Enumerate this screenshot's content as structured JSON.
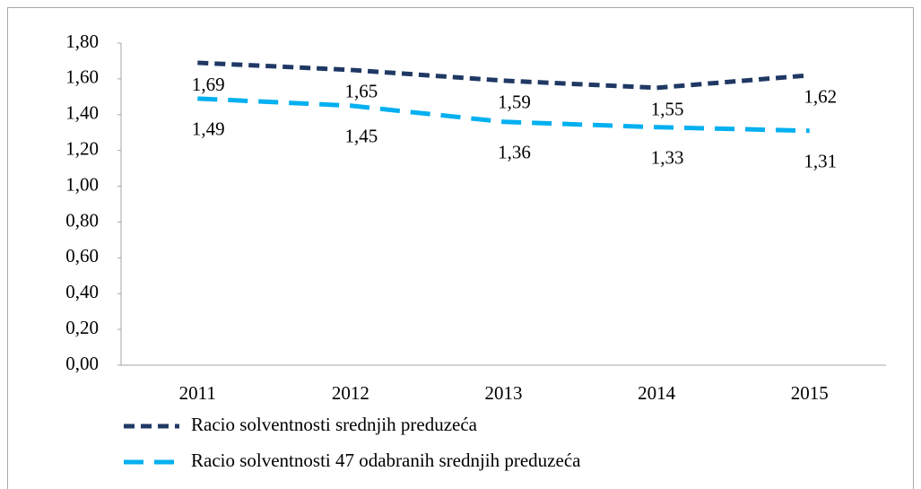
{
  "chart_data": {
    "type": "line",
    "categories": [
      "2011",
      "2012",
      "2013",
      "2014",
      "2015"
    ],
    "series": [
      {
        "name": "Racio solventnosti srednjih preduzeća",
        "color": "#203864",
        "values": [
          1.69,
          1.65,
          1.59,
          1.55,
          1.62
        ],
        "value_labels": [
          "1,69",
          "1,65",
          "1,59",
          "1,55",
          "1,62"
        ]
      },
      {
        "name": "Racio solventnosti 47 odabranih srednjih preduzeća",
        "color": "#00b0f0",
        "values": [
          1.49,
          1.45,
          1.36,
          1.33,
          1.31
        ],
        "value_labels": [
          "1,49",
          "1,45",
          "1,36",
          "1,33",
          "1,31"
        ]
      }
    ],
    "ylim": [
      0,
      1.8
    ],
    "yticks": [
      {
        "value": 0,
        "label": "0,00"
      },
      {
        "value": 0.2,
        "label": "0,20"
      },
      {
        "value": 0.4,
        "label": "0,40"
      },
      {
        "value": 0.6,
        "label": "0,60"
      },
      {
        "value": 0.8,
        "label": "0,80"
      },
      {
        "value": 1.0,
        "label": "1,00"
      },
      {
        "value": 1.2,
        "label": "1,20"
      },
      {
        "value": 1.4,
        "label": "1,40"
      },
      {
        "value": 1.6,
        "label": "1,60"
      },
      {
        "value": 1.8,
        "label": "1,80"
      }
    ],
    "legend": "bottom"
  }
}
